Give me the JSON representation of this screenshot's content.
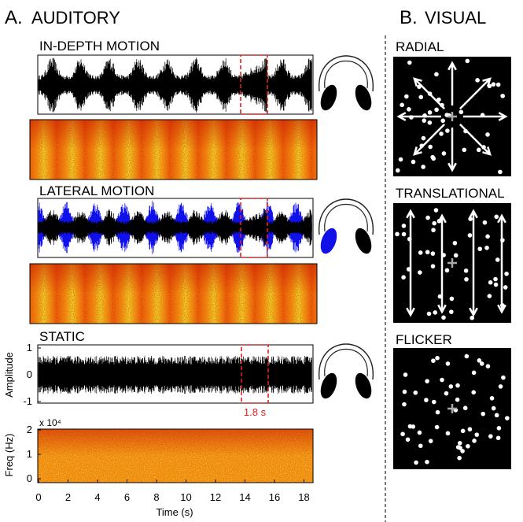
{
  "panel_a": {
    "letter": "A.",
    "title": "AUDITORY",
    "conditions": [
      "IN-DEPTH MOTION",
      "LATERAL MOTION",
      "STATIC"
    ],
    "amplitude_axis": {
      "label": "Amplitude",
      "ticks": [
        1,
        0,
        -1
      ]
    },
    "frequency_axis": {
      "label": "Freq (Hz)",
      "multiplier": "x 10⁴",
      "ticks": [
        2,
        1,
        0
      ]
    },
    "time_axis": {
      "label": "Time (s)",
      "ticks": [
        0,
        2,
        4,
        6,
        8,
        10,
        12,
        14,
        16,
        18
      ]
    },
    "window_label": "1.8 s"
  },
  "panel_b": {
    "letter": "B.",
    "title": "VISUAL",
    "conditions": [
      "RADIAL",
      "TRANSLATIONAL",
      "FLICKER"
    ]
  }
}
